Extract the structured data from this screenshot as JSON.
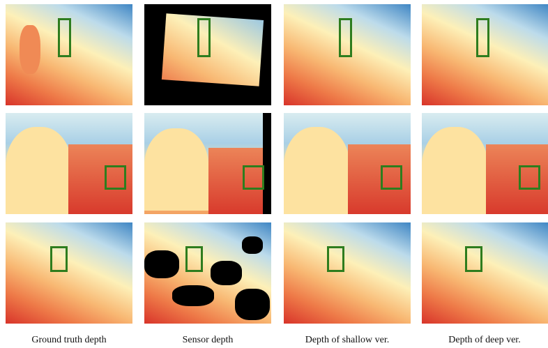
{
  "captions": [
    "Ground truth depth",
    "Sensor depth",
    "Depth of shallow ver.",
    "Depth of deep ver."
  ]
}
